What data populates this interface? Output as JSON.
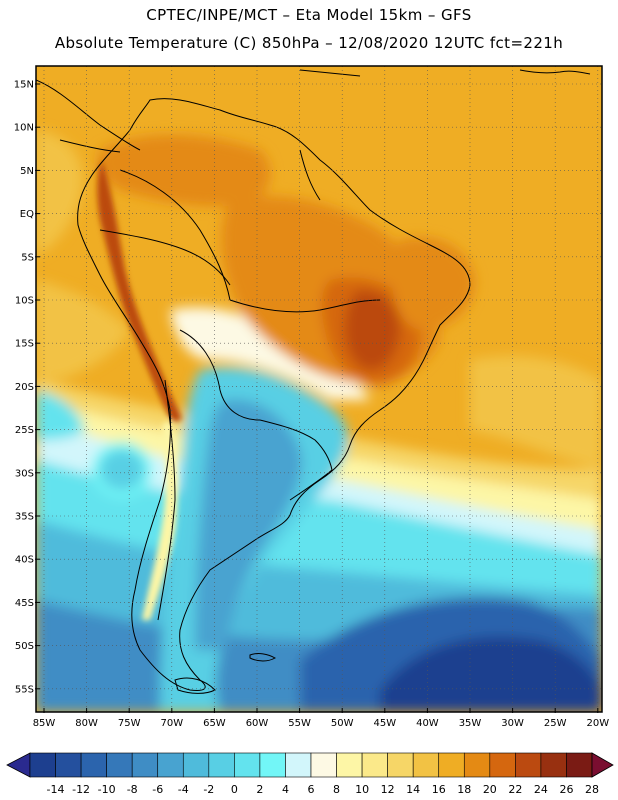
{
  "header": {
    "title_line1": "CPTEC/INPE/MCT –  Eta Model 15km – GFS",
    "title_line2": "Absolute Temperature (C) 850hPa – 12/08/2020 12UTC fct=221h"
  },
  "map": {
    "region": "South America",
    "lat_labels": [
      "15N",
      "10N",
      "5N",
      "EQ",
      "5S",
      "10S",
      "15S",
      "20S",
      "25S",
      "30S",
      "35S",
      "40S",
      "45S",
      "50S",
      "55S"
    ],
    "lon_labels": [
      "85W",
      "80W",
      "75W",
      "70W",
      "65W",
      "60W",
      "55W",
      "50W",
      "45W",
      "40W",
      "35W",
      "30W",
      "25W",
      "20W"
    ]
  },
  "colorbar": {
    "labels": [
      "-14",
      "-12",
      "-10",
      "-8",
      "-6",
      "-4",
      "-2",
      "0",
      "2",
      "4",
      "6",
      "8",
      "10",
      "12",
      "14",
      "16",
      "18",
      "20",
      "22",
      "24",
      "26",
      "28"
    ],
    "colors": [
      "#1d3f8f",
      "#24509e",
      "#2b64ad",
      "#3578b9",
      "#3f8dc5",
      "#48a3d0",
      "#4fbbdb",
      "#58cfe4",
      "#63e3ee",
      "#72f6f7",
      "#d2f6fb",
      "#fdf9e4",
      "#fdf6a6",
      "#fbe98a",
      "#f6d667",
      "#f2c244",
      "#efad24",
      "#e48a14",
      "#d5670f",
      "#bb4a10",
      "#983010",
      "#7a1b14"
    ],
    "low_arrow_color": "#2a2a8f",
    "high_arrow_color": "#7a0e30"
  },
  "legend_colors": {
    "ocean_cold": "#1f4d9e",
    "ocean_mid": "#4fbbdb",
    "ocean_warm": "#f2c244",
    "land_hot": "#d5670f",
    "andes": "#bb4a10"
  }
}
